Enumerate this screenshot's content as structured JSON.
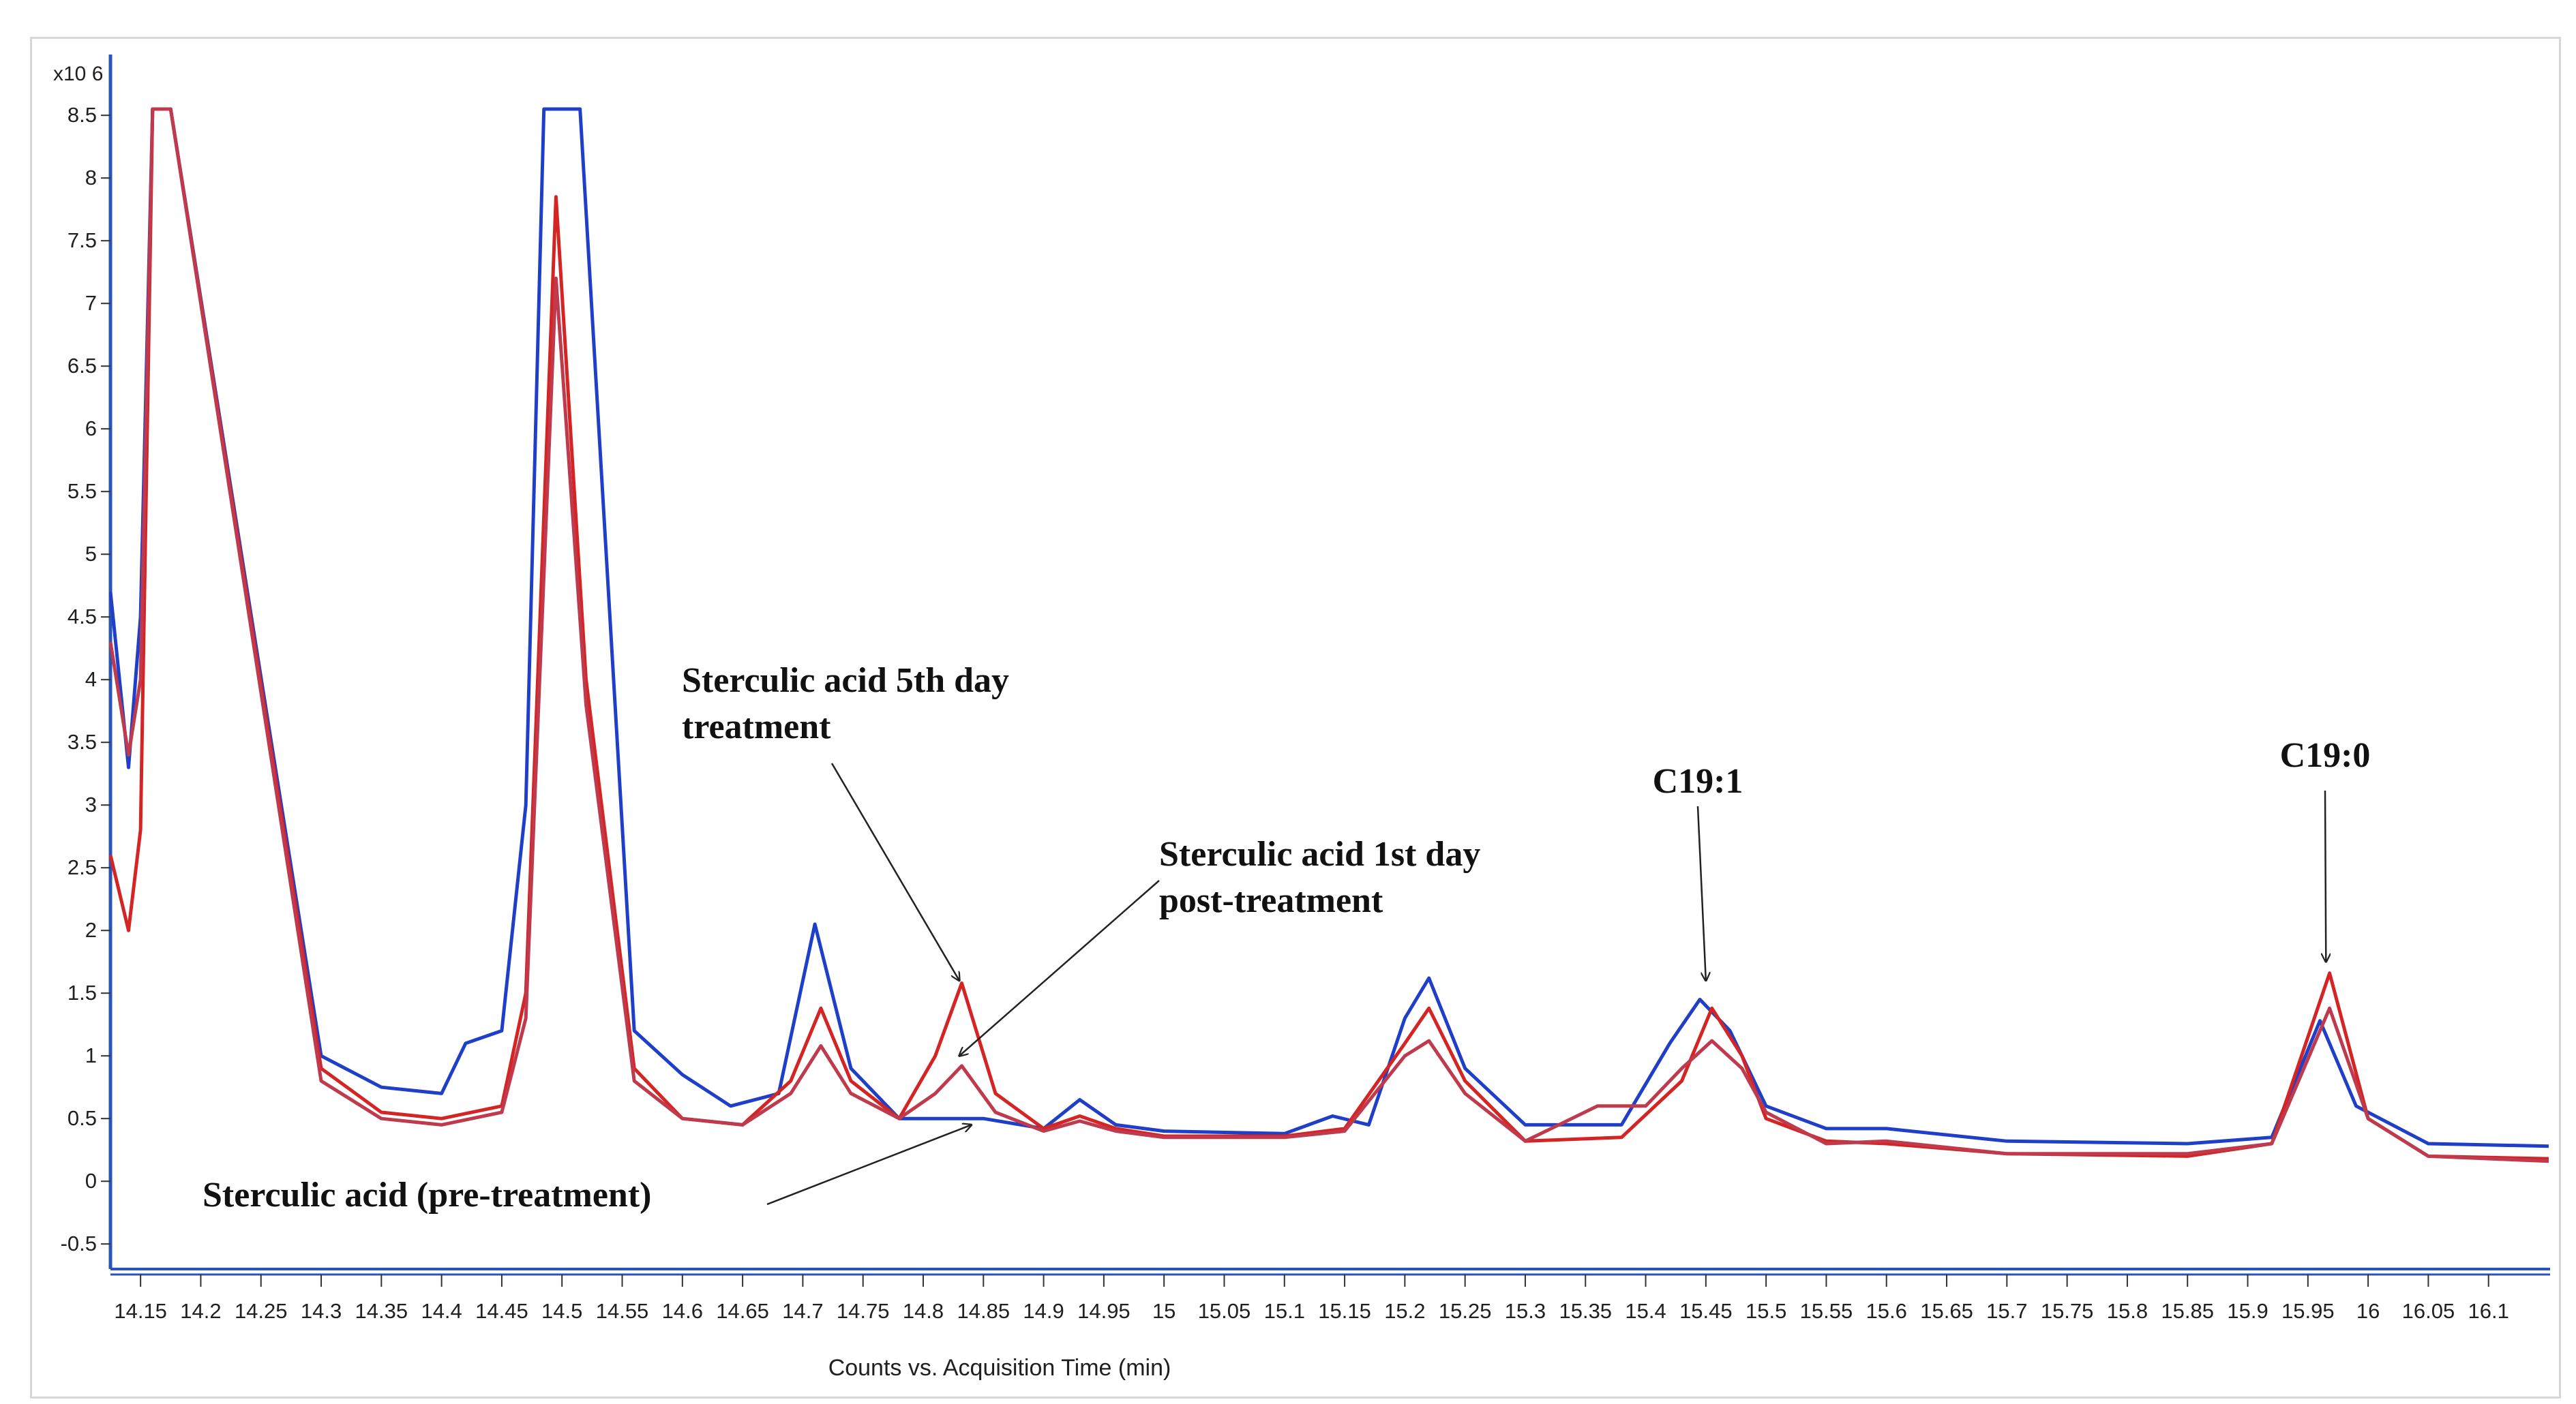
{
  "chart_data": {
    "type": "line",
    "title": "",
    "xlabel": "Counts vs. Acquisition Time (min)",
    "ylabel": "",
    "y_multiplier": "x10 6",
    "xlim": [
      14.125,
      16.15
    ],
    "ylim": [
      -0.7,
      8.55
    ],
    "x_ticks": [
      "14.15",
      "14.2",
      "14.25",
      "14.3",
      "14.35",
      "14.4",
      "14.45",
      "14.5",
      "14.55",
      "14.6",
      "14.65",
      "14.7",
      "14.75",
      "14.8",
      "14.85",
      "14.9",
      "14.95",
      "15",
      "15.05",
      "15.1",
      "15.15",
      "15.2",
      "15.25",
      "15.3",
      "15.35",
      "15.4",
      "15.45",
      "15.5",
      "15.55",
      "15.6",
      "15.65",
      "15.7",
      "15.75",
      "15.8",
      "15.85",
      "15.9",
      "15.95",
      "16",
      "16.05",
      "16.1"
    ],
    "y_ticks": [
      "8.5",
      "8",
      "7.5",
      "7",
      "6.5",
      "6",
      "5.5",
      "5",
      "4.5",
      "4",
      "3.5",
      "3",
      "2.5",
      "2",
      "1.5",
      "1",
      "0.5",
      "0",
      "-0.5"
    ],
    "series": [
      {
        "name": "Sterculic acid (pre-treatment)",
        "color": "#1f3fc8",
        "points": [
          [
            14.125,
            4.7
          ],
          [
            14.14,
            3.3
          ],
          [
            14.15,
            4.5
          ],
          [
            14.16,
            8.6
          ],
          [
            14.175,
            8.6
          ],
          [
            14.3,
            1.0
          ],
          [
            14.35,
            0.75
          ],
          [
            14.4,
            0.7
          ],
          [
            14.42,
            1.1
          ],
          [
            14.45,
            1.2
          ],
          [
            14.47,
            3.0
          ],
          [
            14.485,
            8.6
          ],
          [
            14.515,
            8.6
          ],
          [
            14.56,
            1.2
          ],
          [
            14.6,
            0.85
          ],
          [
            14.64,
            0.6
          ],
          [
            14.68,
            0.7
          ],
          [
            14.71,
            2.05
          ],
          [
            14.74,
            0.9
          ],
          [
            14.78,
            0.5
          ],
          [
            14.85,
            0.5
          ],
          [
            14.9,
            0.42
          ],
          [
            14.93,
            0.65
          ],
          [
            14.96,
            0.45
          ],
          [
            15.0,
            0.4
          ],
          [
            15.1,
            0.38
          ],
          [
            15.14,
            0.52
          ],
          [
            15.17,
            0.45
          ],
          [
            15.2,
            1.3
          ],
          [
            15.22,
            1.62
          ],
          [
            15.25,
            0.9
          ],
          [
            15.3,
            0.45
          ],
          [
            15.38,
            0.45
          ],
          [
            15.42,
            1.1
          ],
          [
            15.445,
            1.45
          ],
          [
            15.47,
            1.2
          ],
          [
            15.5,
            0.6
          ],
          [
            15.55,
            0.42
          ],
          [
            15.6,
            0.42
          ],
          [
            15.7,
            0.32
          ],
          [
            15.85,
            0.3
          ],
          [
            15.92,
            0.35
          ],
          [
            15.96,
            1.28
          ],
          [
            15.99,
            0.6
          ],
          [
            16.05,
            0.3
          ],
          [
            16.15,
            0.28
          ]
        ]
      },
      {
        "name": "Sterculic acid 5th day treatment",
        "color": "#d42424",
        "points": [
          [
            14.125,
            2.6
          ],
          [
            14.14,
            2.0
          ],
          [
            14.15,
            2.8
          ],
          [
            14.16,
            8.6
          ],
          [
            14.175,
            8.6
          ],
          [
            14.3,
            0.9
          ],
          [
            14.35,
            0.55
          ],
          [
            14.4,
            0.5
          ],
          [
            14.45,
            0.6
          ],
          [
            14.47,
            1.5
          ],
          [
            14.495,
            7.85
          ],
          [
            14.52,
            4.0
          ],
          [
            14.56,
            0.9
          ],
          [
            14.6,
            0.5
          ],
          [
            14.65,
            0.45
          ],
          [
            14.69,
            0.8
          ],
          [
            14.715,
            1.38
          ],
          [
            14.74,
            0.8
          ],
          [
            14.78,
            0.5
          ],
          [
            14.81,
            1.0
          ],
          [
            14.832,
            1.58
          ],
          [
            14.86,
            0.7
          ],
          [
            14.9,
            0.42
          ],
          [
            14.93,
            0.52
          ],
          [
            14.96,
            0.42
          ],
          [
            15.0,
            0.36
          ],
          [
            15.1,
            0.36
          ],
          [
            15.15,
            0.42
          ],
          [
            15.2,
            1.1
          ],
          [
            15.22,
            1.38
          ],
          [
            15.25,
            0.8
          ],
          [
            15.3,
            0.32
          ],
          [
            15.38,
            0.35
          ],
          [
            15.43,
            0.8
          ],
          [
            15.455,
            1.38
          ],
          [
            15.48,
            1.0
          ],
          [
            15.5,
            0.5
          ],
          [
            15.55,
            0.32
          ],
          [
            15.6,
            0.3
          ],
          [
            15.7,
            0.22
          ],
          [
            15.85,
            0.2
          ],
          [
            15.92,
            0.3
          ],
          [
            15.968,
            1.66
          ],
          [
            16.0,
            0.5
          ],
          [
            16.05,
            0.2
          ],
          [
            16.15,
            0.18
          ]
        ]
      },
      {
        "name": "Sterculic acid 1st day post-treatment",
        "color": "#c03a4e",
        "points": [
          [
            14.125,
            4.3
          ],
          [
            14.14,
            3.4
          ],
          [
            14.15,
            4.0
          ],
          [
            14.16,
            8.6
          ],
          [
            14.175,
            8.6
          ],
          [
            14.3,
            0.8
          ],
          [
            14.35,
            0.5
          ],
          [
            14.4,
            0.45
          ],
          [
            14.45,
            0.55
          ],
          [
            14.47,
            1.3
          ],
          [
            14.495,
            7.2
          ],
          [
            14.52,
            3.8
          ],
          [
            14.56,
            0.8
          ],
          [
            14.6,
            0.5
          ],
          [
            14.65,
            0.45
          ],
          [
            14.69,
            0.7
          ],
          [
            14.715,
            1.08
          ],
          [
            14.74,
            0.7
          ],
          [
            14.78,
            0.5
          ],
          [
            14.81,
            0.7
          ],
          [
            14.832,
            0.92
          ],
          [
            14.86,
            0.55
          ],
          [
            14.9,
            0.4
          ],
          [
            14.93,
            0.48
          ],
          [
            14.96,
            0.4
          ],
          [
            15.0,
            0.35
          ],
          [
            15.1,
            0.35
          ],
          [
            15.15,
            0.4
          ],
          [
            15.2,
            1.0
          ],
          [
            15.22,
            1.12
          ],
          [
            15.25,
            0.7
          ],
          [
            15.3,
            0.32
          ],
          [
            15.36,
            0.6
          ],
          [
            15.4,
            0.6
          ],
          [
            15.43,
            0.9
          ],
          [
            15.455,
            1.12
          ],
          [
            15.48,
            0.9
          ],
          [
            15.5,
            0.55
          ],
          [
            15.55,
            0.3
          ],
          [
            15.6,
            0.32
          ],
          [
            15.7,
            0.22
          ],
          [
            15.85,
            0.22
          ],
          [
            15.92,
            0.3
          ],
          [
            15.968,
            1.38
          ],
          [
            16.0,
            0.5
          ],
          [
            16.05,
            0.2
          ],
          [
            16.15,
            0.16
          ]
        ]
      }
    ],
    "annotations": [
      {
        "lines": [
          "Sterculic  acid 5th day",
          "treatment"
        ],
        "target": [
          14.83,
          1.6
        ]
      },
      {
        "lines": [
          "Sterculic  acid 1st day",
          "post-treatment"
        ],
        "target": [
          14.83,
          1.0
        ]
      },
      {
        "lines": [
          "Sterculic  acid (pre-treatment)"
        ],
        "target": [
          14.84,
          0.45
        ]
      },
      {
        "lines": [
          "C19:1"
        ],
        "target": [
          15.45,
          1.6
        ]
      },
      {
        "lines": [
          "C19:0"
        ],
        "target": [
          15.965,
          1.75
        ]
      }
    ]
  }
}
